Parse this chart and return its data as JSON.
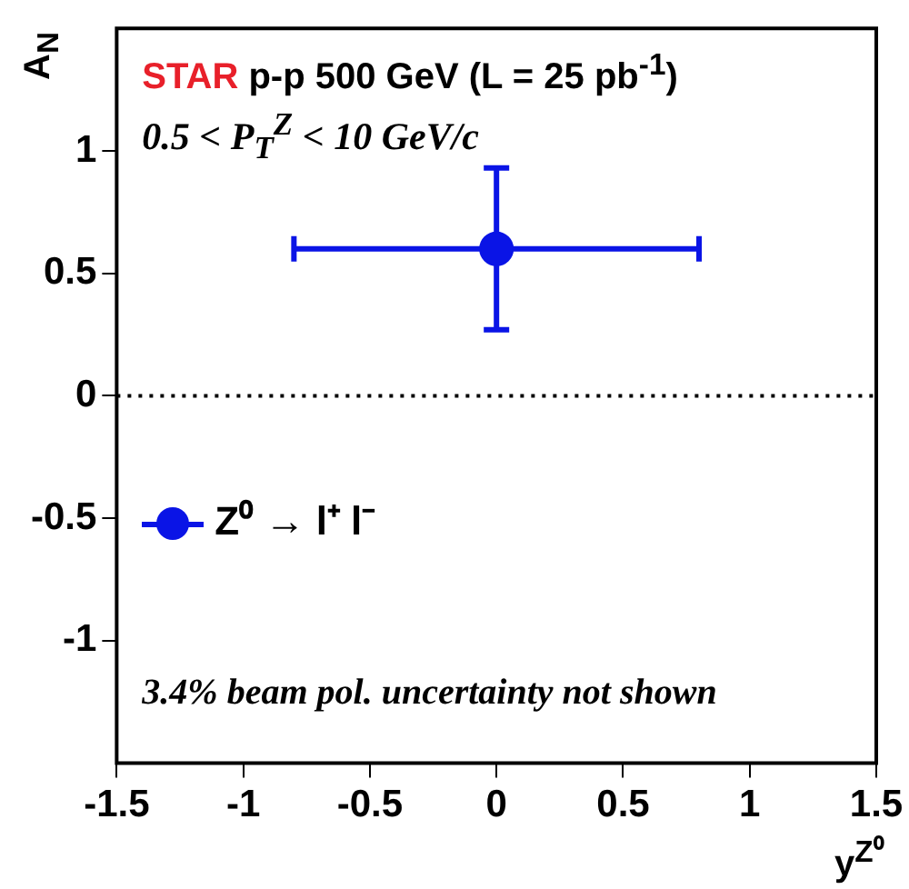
{
  "chart_data": {
    "type": "scatter",
    "title": "STAR p-p 500 GeV (L = 25 pb$^{-1}$)",
    "subtitle": "0.5 < P$_{T}$$^{Z}$ < 10 GeV/c",
    "xlabel": "y$^{Z⁰}$",
    "ylabel": "A$_{N}$",
    "annotations": [
      "3.4% beam pol. uncertainty not shown"
    ],
    "series": [
      {
        "name": "Z⁰ → l⁺ l⁻",
        "color": "#0a14e6",
        "x": [
          0
        ],
        "values": [
          0.6
        ],
        "errors": [
          0.33
        ],
        "xerrors": [
          0.8
        ]
      }
    ],
    "xlim": [
      -1.5,
      1.5
    ],
    "xticks": [
      -1.5,
      -1,
      -0.5,
      0,
      0.5,
      1,
      1.5
    ],
    "ylim": [
      -1.5,
      1.5
    ],
    "yticks": [
      -1,
      -0.5,
      0,
      0.5,
      1
    ],
    "ref_lines": [
      {
        "axis": "y",
        "value": 0,
        "line_style": "dotted",
        "color": "#000000"
      }
    ],
    "grid": false,
    "legend": "left",
    "marker": "circle"
  }
}
